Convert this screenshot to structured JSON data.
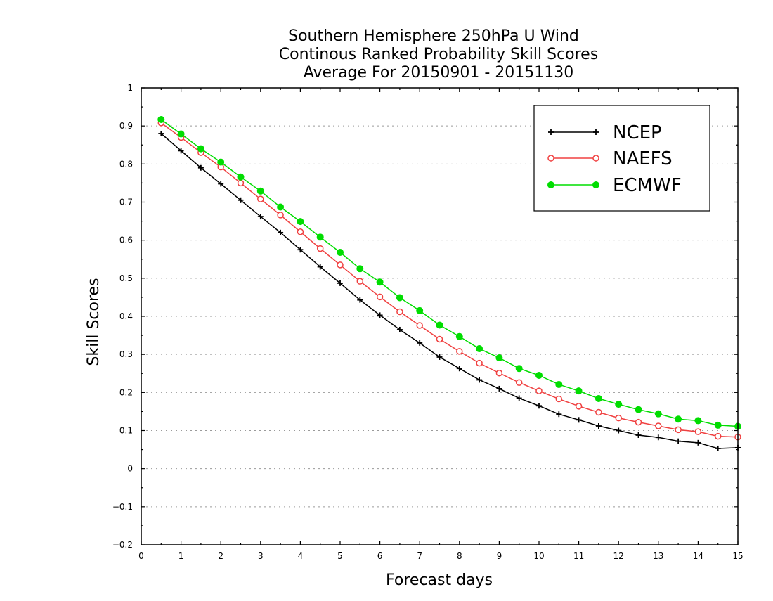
{
  "chart_data": {
    "type": "line",
    "title_lines": [
      "Southern Hemisphere 250hPa U Wind",
      "Continous Ranked Probability Skill Scores",
      "Average For 20150901 - 20151130"
    ],
    "xlabel": "Forecast days",
    "ylabel": "Skill Scores",
    "xlim": [
      0,
      15
    ],
    "ylim": [
      -0.2,
      1
    ],
    "x_ticks": [
      0,
      1,
      2,
      3,
      4,
      5,
      6,
      7,
      8,
      9,
      10,
      11,
      12,
      13,
      14,
      15
    ],
    "x_tick_labels": [
      "0",
      "1",
      "2",
      "3",
      "4",
      "5",
      "6",
      "7",
      "8",
      "9",
      "10",
      "11",
      "12",
      "13",
      "14",
      "15"
    ],
    "y_ticks": [
      -0.2,
      -0.1,
      0,
      0.1,
      0.2,
      0.3,
      0.4,
      0.5,
      0.6,
      0.7,
      0.8,
      0.9,
      1
    ],
    "y_tick_labels": [
      "−0.2",
      "−0.1",
      "0",
      "0.1",
      "0.2",
      "0.3",
      "0.4",
      "0.5",
      "0.6",
      "0.7",
      "0.8",
      "0.9",
      "1"
    ],
    "grid": "horizontal dotted",
    "legend_position": "top-right",
    "x": [
      0.5,
      1,
      1.5,
      2,
      2.5,
      3,
      3.5,
      4,
      4.5,
      5,
      5.5,
      6,
      6.5,
      7,
      7.5,
      8,
      8.5,
      9,
      9.5,
      10,
      10.5,
      11,
      11.5,
      12,
      12.5,
      13,
      13.5,
      14,
      14.5,
      15
    ],
    "series": [
      {
        "name": "NCEP",
        "color": "#000000",
        "marker": "plus",
        "values": [
          0.88,
          0.835,
          0.79,
          0.748,
          0.705,
          0.662,
          0.62,
          0.575,
          0.53,
          0.487,
          0.443,
          0.403,
          0.365,
          0.33,
          0.293,
          0.263,
          0.233,
          0.21,
          0.185,
          0.165,
          0.143,
          0.128,
          0.112,
          0.1,
          0.088,
          0.082,
          0.072,
          0.068,
          0.053,
          0.055
        ]
      },
      {
        "name": "NAEFS",
        "color": "#f04040",
        "marker": "open-circle",
        "values": [
          0.908,
          0.87,
          0.83,
          0.792,
          0.75,
          0.708,
          0.666,
          0.622,
          0.578,
          0.535,
          0.492,
          0.451,
          0.412,
          0.376,
          0.34,
          0.308,
          0.277,
          0.251,
          0.226,
          0.204,
          0.183,
          0.164,
          0.148,
          0.133,
          0.122,
          0.112,
          0.102,
          0.097,
          0.085,
          0.083
        ]
      },
      {
        "name": "ECMWF",
        "color": "#00dd00",
        "marker": "filled-circle",
        "values": [
          0.917,
          0.879,
          0.84,
          0.805,
          0.766,
          0.729,
          0.687,
          0.649,
          0.608,
          0.568,
          0.525,
          0.49,
          0.449,
          0.415,
          0.377,
          0.347,
          0.315,
          0.291,
          0.263,
          0.245,
          0.221,
          0.204,
          0.184,
          0.169,
          0.155,
          0.144,
          0.13,
          0.126,
          0.114,
          0.111
        ]
      }
    ]
  }
}
